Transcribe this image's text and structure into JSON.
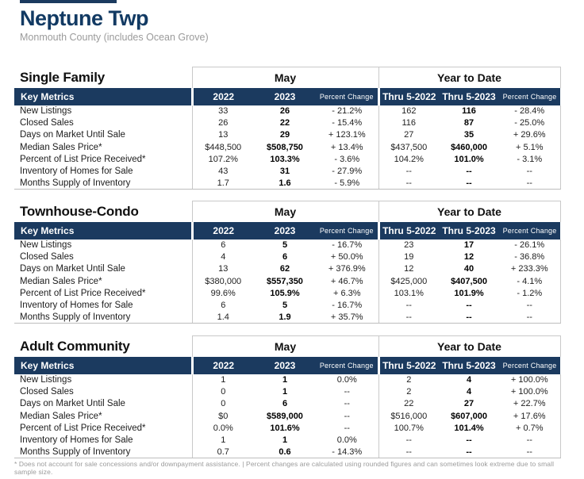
{
  "page": {
    "title": "Neptune Twp",
    "subtitle": "Monmouth County (includes Ocean Grove)",
    "footnote": "* Does not account for sale concessions and/or downpayment assistance.  |  Percent changes are calculated using rounded figures and can sometimes look extreme due to small sample size."
  },
  "colors": {
    "header_navy": "#1b3a5f",
    "title_navy": "#123a63",
    "border_gray": "#c9c9c9",
    "subtitle_gray": "#9b9b9b"
  },
  "table_headers": {
    "key_metrics": "Key Metrics",
    "may_group": "May",
    "ytd_group": "Year to Date",
    "col_2022": "2022",
    "col_2023": "2023",
    "col_pct_change": "Percent Change",
    "col_thru_2022": "Thru 5-2022",
    "col_thru_2023": "Thru 5-2023"
  },
  "sections": [
    {
      "name": "Single Family",
      "rows": [
        {
          "metric": "New Listings",
          "may_2022": "33",
          "may_2023": "26",
          "may_pct": "- 21.2%",
          "ytd_2022": "162",
          "ytd_2023": "116",
          "ytd_pct": "- 28.4%"
        },
        {
          "metric": "Closed Sales",
          "may_2022": "26",
          "may_2023": "22",
          "may_pct": "- 15.4%",
          "ytd_2022": "116",
          "ytd_2023": "87",
          "ytd_pct": "- 25.0%"
        },
        {
          "metric": "Days on Market Until Sale",
          "may_2022": "13",
          "may_2023": "29",
          "may_pct": "+ 123.1%",
          "ytd_2022": "27",
          "ytd_2023": "35",
          "ytd_pct": "+ 29.6%"
        },
        {
          "metric": "Median Sales Price*",
          "may_2022": "$448,500",
          "may_2023": "$508,750",
          "may_pct": "+ 13.4%",
          "ytd_2022": "$437,500",
          "ytd_2023": "$460,000",
          "ytd_pct": "+ 5.1%"
        },
        {
          "metric": "Percent of List Price Received*",
          "may_2022": "107.2%",
          "may_2023": "103.3%",
          "may_pct": "- 3.6%",
          "ytd_2022": "104.2%",
          "ytd_2023": "101.0%",
          "ytd_pct": "- 3.1%"
        },
        {
          "metric": "Inventory of Homes for Sale",
          "may_2022": "43",
          "may_2023": "31",
          "may_pct": "- 27.9%",
          "ytd_2022": "--",
          "ytd_2023": "--",
          "ytd_pct": "--"
        },
        {
          "metric": "Months Supply of Inventory",
          "may_2022": "1.7",
          "may_2023": "1.6",
          "may_pct": "- 5.9%",
          "ytd_2022": "--",
          "ytd_2023": "--",
          "ytd_pct": "--"
        }
      ]
    },
    {
      "name": "Townhouse-Condo",
      "rows": [
        {
          "metric": "New Listings",
          "may_2022": "6",
          "may_2023": "5",
          "may_pct": "- 16.7%",
          "ytd_2022": "23",
          "ytd_2023": "17",
          "ytd_pct": "- 26.1%"
        },
        {
          "metric": "Closed Sales",
          "may_2022": "4",
          "may_2023": "6",
          "may_pct": "+ 50.0%",
          "ytd_2022": "19",
          "ytd_2023": "12",
          "ytd_pct": "- 36.8%"
        },
        {
          "metric": "Days on Market Until Sale",
          "may_2022": "13",
          "may_2023": "62",
          "may_pct": "+ 376.9%",
          "ytd_2022": "12",
          "ytd_2023": "40",
          "ytd_pct": "+ 233.3%"
        },
        {
          "metric": "Median Sales Price*",
          "may_2022": "$380,000",
          "may_2023": "$557,350",
          "may_pct": "+ 46.7%",
          "ytd_2022": "$425,000",
          "ytd_2023": "$407,500",
          "ytd_pct": "- 4.1%"
        },
        {
          "metric": "Percent of List Price Received*",
          "may_2022": "99.6%",
          "may_2023": "105.9%",
          "may_pct": "+ 6.3%",
          "ytd_2022": "103.1%",
          "ytd_2023": "101.9%",
          "ytd_pct": "- 1.2%"
        },
        {
          "metric": "Inventory of Homes for Sale",
          "may_2022": "6",
          "may_2023": "5",
          "may_pct": "- 16.7%",
          "ytd_2022": "--",
          "ytd_2023": "--",
          "ytd_pct": "--"
        },
        {
          "metric": "Months Supply of Inventory",
          "may_2022": "1.4",
          "may_2023": "1.9",
          "may_pct": "+ 35.7%",
          "ytd_2022": "--",
          "ytd_2023": "--",
          "ytd_pct": "--"
        }
      ]
    },
    {
      "name": "Adult Community",
      "rows": [
        {
          "metric": "New Listings",
          "may_2022": "1",
          "may_2023": "1",
          "may_pct": "0.0%",
          "ytd_2022": "2",
          "ytd_2023": "4",
          "ytd_pct": "+ 100.0%"
        },
        {
          "metric": "Closed Sales",
          "may_2022": "0",
          "may_2023": "1",
          "may_pct": "--",
          "ytd_2022": "2",
          "ytd_2023": "4",
          "ytd_pct": "+ 100.0%"
        },
        {
          "metric": "Days on Market Until Sale",
          "may_2022": "0",
          "may_2023": "6",
          "may_pct": "--",
          "ytd_2022": "22",
          "ytd_2023": "27",
          "ytd_pct": "+ 22.7%"
        },
        {
          "metric": "Median Sales Price*",
          "may_2022": "$0",
          "may_2023": "$589,000",
          "may_pct": "--",
          "ytd_2022": "$516,000",
          "ytd_2023": "$607,000",
          "ytd_pct": "+ 17.6%"
        },
        {
          "metric": "Percent of List Price Received*",
          "may_2022": "0.0%",
          "may_2023": "101.6%",
          "may_pct": "--",
          "ytd_2022": "100.7%",
          "ytd_2023": "101.4%",
          "ytd_pct": "+ 0.7%"
        },
        {
          "metric": "Inventory of Homes for Sale",
          "may_2022": "1",
          "may_2023": "1",
          "may_pct": "0.0%",
          "ytd_2022": "--",
          "ytd_2023": "--",
          "ytd_pct": "--"
        },
        {
          "metric": "Months Supply of Inventory",
          "may_2022": "0.7",
          "may_2023": "0.6",
          "may_pct": "- 14.3%",
          "ytd_2022": "--",
          "ytd_2023": "--",
          "ytd_pct": "--"
        }
      ]
    }
  ]
}
